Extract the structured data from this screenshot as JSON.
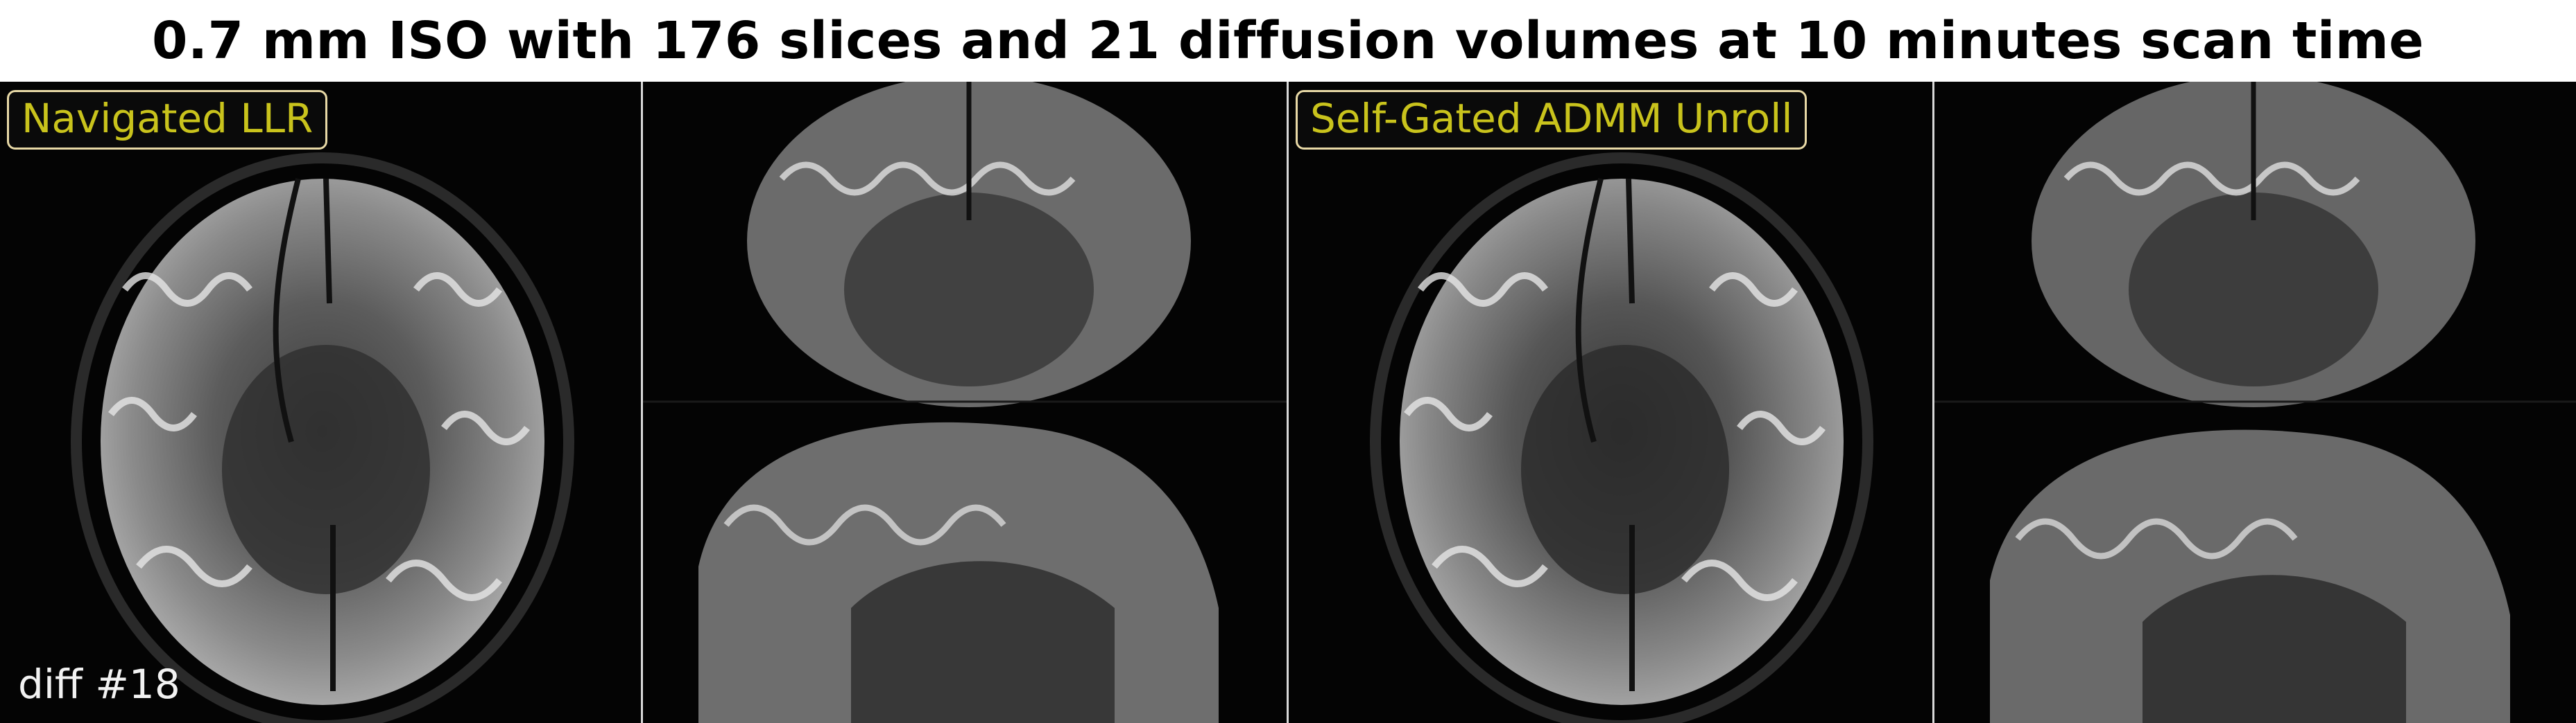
{
  "title": "0.7 mm ISO with 176 slices and 21 diffusion volumes at 10 minutes scan time",
  "panels": [
    {
      "label": "Navigated LLR",
      "diff_label": "diff #18"
    },
    {
      "label": "",
      "diff_label": ""
    },
    {
      "label": "Self-Gated ADMM Unroll",
      "diff_label": ""
    },
    {
      "label": "",
      "diff_label": ""
    }
  ],
  "colors": {
    "label_text": "#c9c31c",
    "label_border": "#e8d9a6",
    "background": "#000000"
  }
}
